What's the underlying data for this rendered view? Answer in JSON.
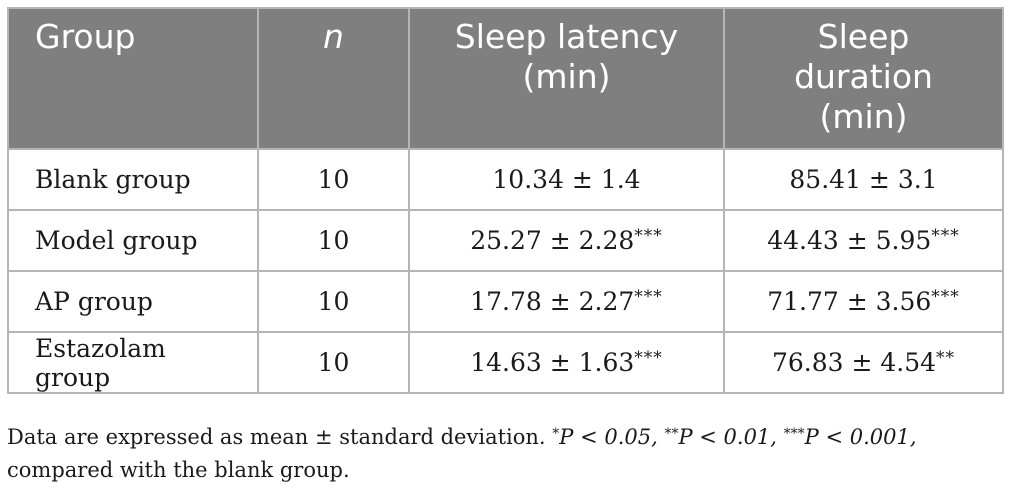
{
  "table": {
    "headers": {
      "group": "Group",
      "n": "n",
      "latency_line1": "Sleep latency",
      "latency_line2": "(min)",
      "duration_line1": "Sleep",
      "duration_line2": "duration",
      "duration_line3": "(min)"
    },
    "rows": [
      {
        "group": "Blank group",
        "n": "10",
        "latency": "10.34 ± 1.4",
        "latency_sig": "",
        "duration": "85.41 ± 3.1",
        "duration_sig": ""
      },
      {
        "group": "Model group",
        "n": "10",
        "latency": "25.27 ± 2.28",
        "latency_sig": "***",
        "duration": "44.43 ± 5.95",
        "duration_sig": "***"
      },
      {
        "group": "AP group",
        "n": "10",
        "latency": "17.78 ± 2.27",
        "latency_sig": "***",
        "duration": "71.77 ± 3.56",
        "duration_sig": "***"
      },
      {
        "group": "Estazolam group",
        "n": "10",
        "latency": "14.63 ± 1.63",
        "latency_sig": "***",
        "duration": "76.83 ± 4.54",
        "duration_sig": "**"
      }
    ]
  },
  "footnote": {
    "intro": "Data are expressed as mean ± standard deviation. ",
    "star1": "*",
    "p1": "P < 0.05, ",
    "star2": "**",
    "p2": "P < 0.01, ",
    "star3": "***",
    "p3": "P < 0.001,",
    "line2": "compared with the blank group."
  }
}
